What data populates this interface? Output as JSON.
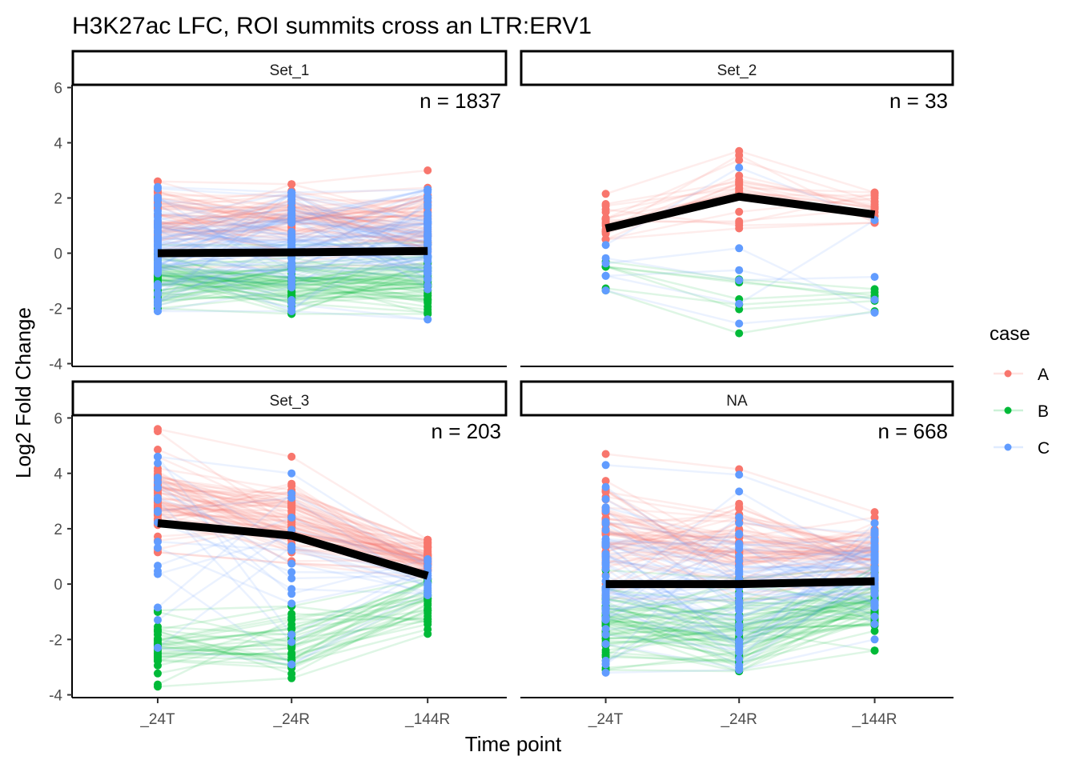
{
  "chart_data": {
    "type": "line",
    "title": "H3K27ac LFC, ROI summits cross an LTR:ERV1",
    "xlabel": "Time point",
    "ylabel": "Log2 Fold Change",
    "x": [
      "_24T",
      "_24R",
      "_144R"
    ],
    "ylim": [
      -4.1,
      6.1
    ],
    "yticks": [
      6,
      4,
      2,
      0,
      -2,
      -4
    ],
    "grid": false,
    "legend": {
      "title": "case",
      "position": "right",
      "entries": [
        {
          "label": "A",
          "color": "#F8766D"
        },
        {
          "label": "B",
          "color": "#00BA38"
        },
        {
          "label": "C",
          "color": "#619CFF"
        }
      ]
    },
    "mean_line_color": "#000000",
    "panels": [
      {
        "strip": "Set_1",
        "n_label": "n = 1837",
        "n": 1837,
        "mean": [
          0.0,
          0.03,
          0.08
        ],
        "groups": [
          {
            "case": "A",
            "count": 60,
            "center": [
              1.2,
              1.2,
              1.1
            ],
            "spread": [
              0.7,
              0.6,
              0.6
            ],
            "min": [
              -0.5,
              -0.5,
              -0.4
            ],
            "max": [
              2.6,
              2.5,
              3.0
            ]
          },
          {
            "case": "B",
            "count": 60,
            "center": [
              -1.0,
              -1.1,
              -1.0
            ],
            "spread": [
              0.5,
              0.5,
              0.6
            ],
            "min": [
              -2.0,
              -2.2,
              -2.2
            ],
            "max": [
              0.3,
              0.3,
              0.4
            ]
          },
          {
            "case": "C",
            "count": 80,
            "center": [
              0.3,
              0.3,
              0.3
            ],
            "spread": [
              1.0,
              1.0,
              1.0
            ],
            "min": [
              -2.1,
              -2.1,
              -2.4
            ],
            "max": [
              2.4,
              2.2,
              2.3
            ]
          }
        ]
      },
      {
        "strip": "Set_2",
        "n_label": "n = 33",
        "n": 33,
        "mean": [
          0.9,
          2.05,
          1.4
        ],
        "groups": [
          {
            "case": "A",
            "count": 20,
            "center": [
              1.0,
              2.2,
              1.6
            ],
            "spread": [
              0.4,
              0.6,
              0.3
            ],
            "min": [
              0.5,
              0.9,
              1.1
            ],
            "max": [
              2.15,
              3.7,
              2.2
            ]
          },
          {
            "case": "B",
            "count": 7,
            "center": [
              -0.8,
              -1.5,
              -1.7
            ],
            "spread": [
              0.3,
              0.6,
              0.3
            ],
            "min": [
              -1.35,
              -2.9,
              -2.1
            ],
            "max": [
              -0.3,
              -0.95,
              -1.3
            ]
          },
          {
            "case": "C",
            "count": 6,
            "center": [
              -0.6,
              0.2,
              0.0
            ],
            "spread": [
              0.5,
              1.8,
              1.6
            ],
            "min": [
              -1.35,
              -2.55,
              -2.15
            ],
            "max": [
              0.3,
              3.1,
              1.2
            ]
          }
        ]
      },
      {
        "strip": "Set_3",
        "n_label": "n = 203",
        "n": 203,
        "mean": [
          2.2,
          1.75,
          0.3
        ],
        "groups": [
          {
            "case": "A",
            "count": 70,
            "center": [
              2.9,
              2.3,
              0.9
            ],
            "spread": [
              0.8,
              0.7,
              0.4
            ],
            "min": [
              1.15,
              0.75,
              0.2
            ],
            "max": [
              5.6,
              4.6,
              1.6
            ]
          },
          {
            "case": "B",
            "count": 35,
            "center": [
              -2.2,
              -1.9,
              -0.6
            ],
            "spread": [
              0.5,
              0.6,
              0.5
            ],
            "min": [
              -3.7,
              -3.4,
              -1.8
            ],
            "max": [
              -0.95,
              -0.8,
              0.2
            ]
          },
          {
            "case": "C",
            "count": 20,
            "center": [
              1.5,
              1.2,
              0.2
            ],
            "spread": [
              1.8,
              1.8,
              0.4
            ],
            "min": [
              -2.3,
              -2.9,
              -0.4
            ],
            "max": [
              4.6,
              4.0,
              0.9
            ]
          }
        ]
      },
      {
        "strip": "NA",
        "n_label": "n = 668",
        "n": 668,
        "mean": [
          0.0,
          0.0,
          0.1
        ],
        "groups": [
          {
            "case": "A",
            "count": 60,
            "center": [
              1.7,
              1.2,
              1.0
            ],
            "spread": [
              1.0,
              0.9,
              0.6
            ],
            "min": [
              -0.5,
              -0.6,
              -0.3
            ],
            "max": [
              4.7,
              4.15,
              2.6
            ]
          },
          {
            "case": "B",
            "count": 60,
            "center": [
              -1.5,
              -1.5,
              -0.7
            ],
            "spread": [
              0.8,
              0.8,
              0.6
            ],
            "min": [
              -3.1,
              -3.15,
              -2.4
            ],
            "max": [
              0.5,
              0.2,
              0.6
            ]
          },
          {
            "case": "C",
            "count": 60,
            "center": [
              0.0,
              -0.2,
              0.2
            ],
            "spread": [
              1.5,
              1.5,
              0.9
            ],
            "min": [
              -3.2,
              -3.1,
              -2.0
            ],
            "max": [
              4.3,
              3.95,
              2.2
            ]
          }
        ]
      }
    ]
  }
}
